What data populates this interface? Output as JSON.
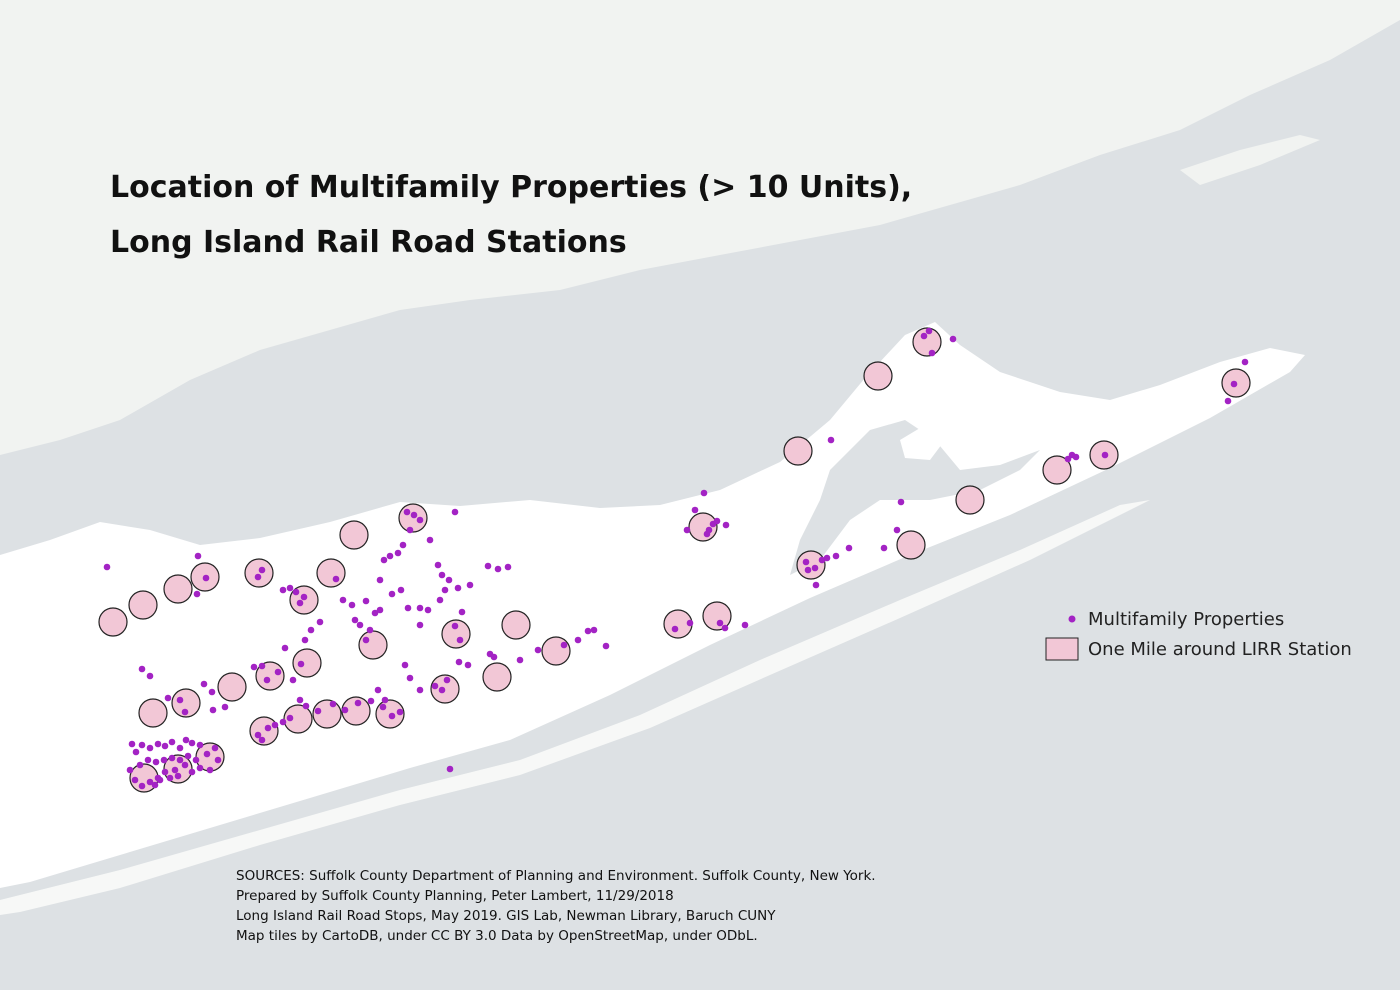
{
  "header": {
    "title_lines": [
      "Location of Multifamily Properties (> 10 Units),",
      "Long Island Rail Road Stations"
    ]
  },
  "legend": {
    "items": [
      "Multifamily Properties",
      "One Mile around LIRR Station"
    ]
  },
  "sources": {
    "lines": [
      "SOURCES: Suffolk County Department of Planning and Environment. Suffolk County, New York.",
      "Prepared by Suffolk County Planning, Peter Lambert, 11/29/2018",
      "Long Island Rail Road Stops, May 2019. GIS Lab, Newman Library, Baruch CUNY",
      "Map tiles by CartoDB, under CC BY 3.0 Data by OpenStreetMap, under ODbL."
    ]
  }
}
